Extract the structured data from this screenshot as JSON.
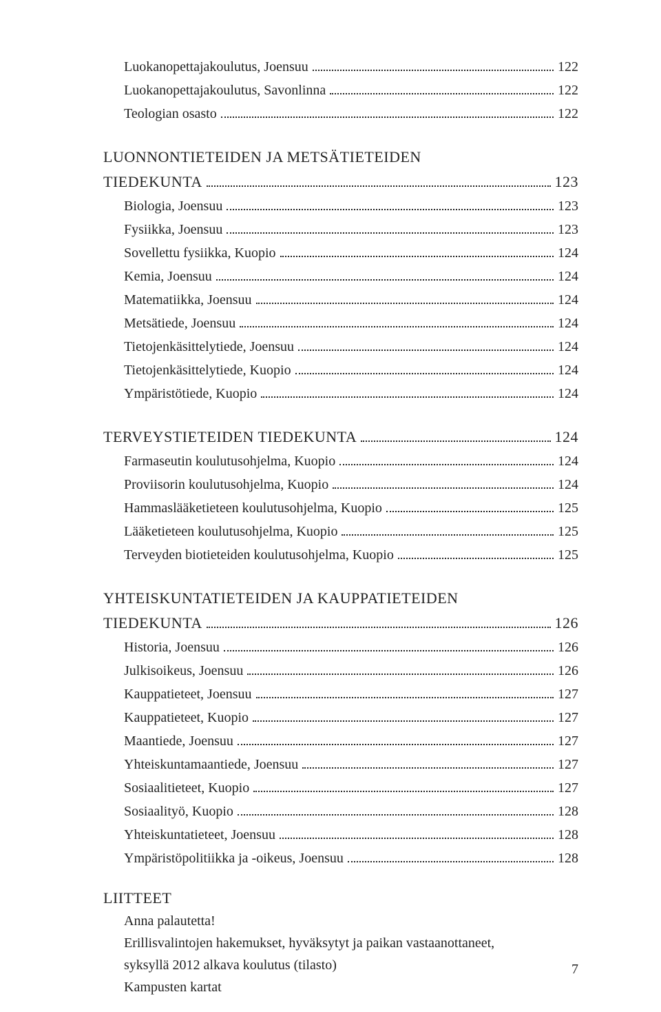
{
  "text_color": "#222222",
  "background_color": "#ffffff",
  "font_family": "Georgia, 'Times New Roman', serif",
  "toc": [
    {
      "type": "entry",
      "label": "Luokanopettajakoulutus, Joensuu",
      "page": "122"
    },
    {
      "type": "entry",
      "label": "Luokanopettajakoulutus, Savonlinna",
      "page": "122"
    },
    {
      "type": "entry",
      "label": "Teologian osasto",
      "page": "122"
    },
    {
      "type": "gap"
    },
    {
      "type": "heading",
      "label": "LUONNONTIETEIDEN JA METSÄTIETEIDEN",
      "page": ""
    },
    {
      "type": "heading",
      "label": "TIEDEKUNTA",
      "page": "123"
    },
    {
      "type": "entry",
      "label": "Biologia, Joensuu",
      "page": "123"
    },
    {
      "type": "entry",
      "label": "Fysiikka, Joensuu",
      "page": "123"
    },
    {
      "type": "entry",
      "label": "Sovellettu fysiikka, Kuopio",
      "page": "124"
    },
    {
      "type": "entry",
      "label": "Kemia, Joensuu",
      "page": "124"
    },
    {
      "type": "entry",
      "label": "Matematiikka, Joensuu",
      "page": "124"
    },
    {
      "type": "entry",
      "label": "Metsätiede, Joensuu",
      "page": "124"
    },
    {
      "type": "entry",
      "label": "Tietojenkäsittelytiede, Joensuu",
      "page": "124"
    },
    {
      "type": "entry",
      "label": "Tietojenkäsittelytiede, Kuopio",
      "page": "124"
    },
    {
      "type": "entry",
      "label": "Ympäristötiede, Kuopio",
      "page": "124"
    },
    {
      "type": "gap"
    },
    {
      "type": "heading",
      "label": "TERVEYSTIETEIDEN TIEDEKUNTA",
      "page": "124"
    },
    {
      "type": "entry",
      "label": "Farmaseutin koulutusohjelma, Kuopio",
      "page": "124"
    },
    {
      "type": "entry",
      "label": "Proviisorin koulutusohjelma, Kuopio",
      "page": "124"
    },
    {
      "type": "entry",
      "label": "Hammaslääketieteen koulutusohjelma, Kuopio",
      "page": "125"
    },
    {
      "type": "entry",
      "label": "Lääketieteen koulutusohjelma, Kuopio",
      "page": "125"
    },
    {
      "type": "entry",
      "label": "Terveyden biotieteiden koulutusohjelma, Kuopio",
      "page": "125"
    },
    {
      "type": "gap"
    },
    {
      "type": "heading",
      "label": "YHTEISKUNTATIETEIDEN JA KAUPPATIETEIDEN",
      "page": ""
    },
    {
      "type": "heading",
      "label": "TIEDEKUNTA",
      "page": "126"
    },
    {
      "type": "entry",
      "label": "Historia, Joensuu",
      "page": "126"
    },
    {
      "type": "entry",
      "label": "Julkisoikeus, Joensuu",
      "page": "126"
    },
    {
      "type": "entry",
      "label": "Kauppatieteet, Joensuu",
      "page": "127"
    },
    {
      "type": "entry",
      "label": "Kauppatieteet, Kuopio",
      "page": "127"
    },
    {
      "type": "entry",
      "label": "Maantiede, Joensuu",
      "page": "127"
    },
    {
      "type": "entry",
      "label": "Yhteiskuntamaantiede, Joensuu",
      "page": "127"
    },
    {
      "type": "entry",
      "label": "Sosiaalitieteet, Kuopio",
      "page": "127"
    },
    {
      "type": "entry",
      "label": "Sosiaalityö, Kuopio",
      "page": "128"
    },
    {
      "type": "entry",
      "label": "Yhteiskuntatieteet, Joensuu",
      "page": "128"
    },
    {
      "type": "entry",
      "label": "Ympäristöpolitiikka ja -oikeus, Joensuu",
      "page": "128"
    }
  ],
  "appendix": {
    "heading": "LIITTEET",
    "items": [
      "Anna palautetta!",
      "Erillisvalintojen hakemukset, hyväksytyt ja paikan vastaanottaneet,",
      "syksyllä 2012 alkava koulutus (tilasto)",
      "Kampusten kartat"
    ]
  },
  "page_number": "7"
}
